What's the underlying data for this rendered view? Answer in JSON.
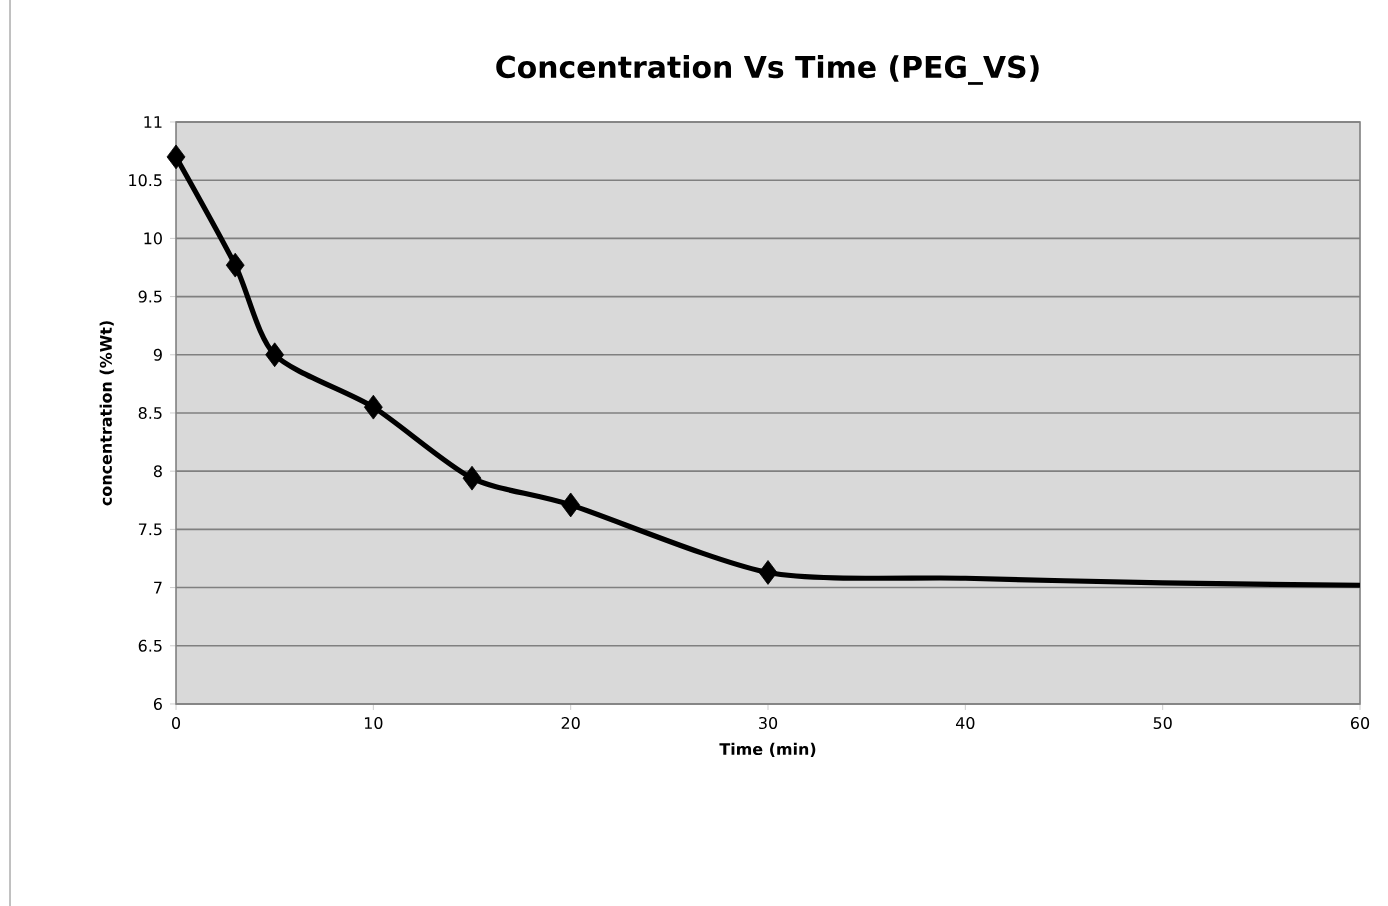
{
  "chart_data": {
    "type": "line",
    "title": "Concentration Vs Time (PEG_VS)",
    "xlabel": "Time (min)",
    "ylabel": "concentration (%Wt)",
    "xlim": [
      0,
      60
    ],
    "xticks": [
      0,
      10,
      20,
      30,
      40,
      50,
      60
    ],
    "ylim": [
      6,
      11
    ],
    "yticks": [
      6,
      6.5,
      7,
      7.5,
      8,
      8.5,
      9,
      9.5,
      10,
      10.5,
      11
    ],
    "grid": "y",
    "series": [
      {
        "marker": "none",
        "color": "#000000",
        "x": [
          0,
          3,
          5,
          10,
          15,
          20,
          30,
          40,
          50,
          60
        ],
        "values": [
          10.7,
          9.77,
          9.0,
          8.55,
          7.94,
          7.71,
          7.13,
          7.08,
          7.04,
          7.02
        ]
      },
      {
        "type": "scatter",
        "marker": "diamond",
        "color": "#000000",
        "x": [
          0,
          3,
          5,
          10,
          15,
          20,
          30
        ],
        "values": [
          10.7,
          9.77,
          9.0,
          8.55,
          7.94,
          7.71,
          7.13
        ]
      }
    ]
  }
}
